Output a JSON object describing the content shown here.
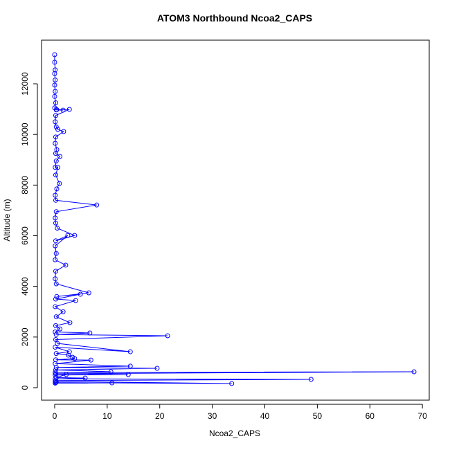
{
  "chart_data": {
    "type": "line",
    "title": "ATOM3 Northbound Ncoa2_CAPS",
    "xlabel": "Ncoa2_CAPS",
    "ylabel": "Altitude (m)",
    "marker": "circle",
    "xlim": [
      -2.5,
      71.3
    ],
    "ylim": [
      -492,
      13723
    ],
    "xticks": [
      0,
      10,
      20,
      30,
      40,
      50,
      60,
      70
    ],
    "yticks": [
      0,
      2000,
      4000,
      6000,
      8000,
      10000,
      12000
    ],
    "series": [
      {
        "color": "#0000ff",
        "x": [
          0,
          0,
          0.1,
          0,
          0.1,
          0,
          0.1,
          0,
          0.2,
          0,
          0.4,
          1.6,
          0.3,
          2.8,
          0.2,
          0.1,
          0.3,
          0.6,
          1.7,
          0.2,
          0.1,
          0.4,
          0.2,
          1.0,
          0.3,
          0.1,
          0.6,
          0.2,
          0.9,
          0.4,
          0.1,
          0.2,
          8.0,
          0.3,
          0.1,
          0.2,
          0.5,
          3.8,
          0.2,
          2.5,
          0.1,
          0.3,
          0.1,
          2.1,
          0.2,
          0.1,
          0.3,
          6.5,
          0.4,
          4.9,
          0.2,
          4.0,
          0.1,
          1.6,
          0.3,
          2.9,
          0.2,
          1.0,
          0.1,
          6.7,
          0.3,
          21.5,
          0.2,
          0.5,
          14.4,
          0.1,
          2.8,
          0.3,
          2.6,
          3.4,
          3.8,
          0.2,
          6.9,
          0.1,
          14.4,
          0.3,
          19.5,
          0.2,
          10.7,
          0.1,
          68.4,
          0.2,
          14.0,
          0.1,
          2.2,
          0.3,
          5.8,
          0.1,
          48.8,
          0.2,
          0.1,
          33.7,
          0.2,
          10.9,
          0.1,
          0.3
        ],
        "values": [
          13150,
          12850,
          12550,
          12400,
          12150,
          11950,
          11700,
          11500,
          11250,
          11050,
          10980,
          10960,
          10970,
          10990,
          10750,
          10500,
          10300,
          10200,
          10115,
          9900,
          9650,
          9400,
          9250,
          9130,
          8950,
          8700,
          8700,
          8400,
          8060,
          7850,
          7600,
          7400,
          7215,
          6950,
          6700,
          6500,
          6300,
          6010,
          5800,
          6010,
          5600,
          5300,
          5050,
          4840,
          4600,
          4300,
          4100,
          3745,
          3600,
          3690,
          3500,
          3440,
          3200,
          3000,
          2800,
          2570,
          2450,
          2320,
          2200,
          2160,
          2100,
          2050,
          1900,
          1750,
          1420,
          1600,
          1420,
          1350,
          1285,
          1200,
          1150,
          1100,
          1090,
          950,
          850,
          800,
          765,
          700,
          630,
          600,
          629,
          550,
          520,
          500,
          520,
          400,
          380,
          350,
          328,
          280,
          250,
          164,
          200,
          190,
          180,
          220
        ]
      }
    ]
  }
}
